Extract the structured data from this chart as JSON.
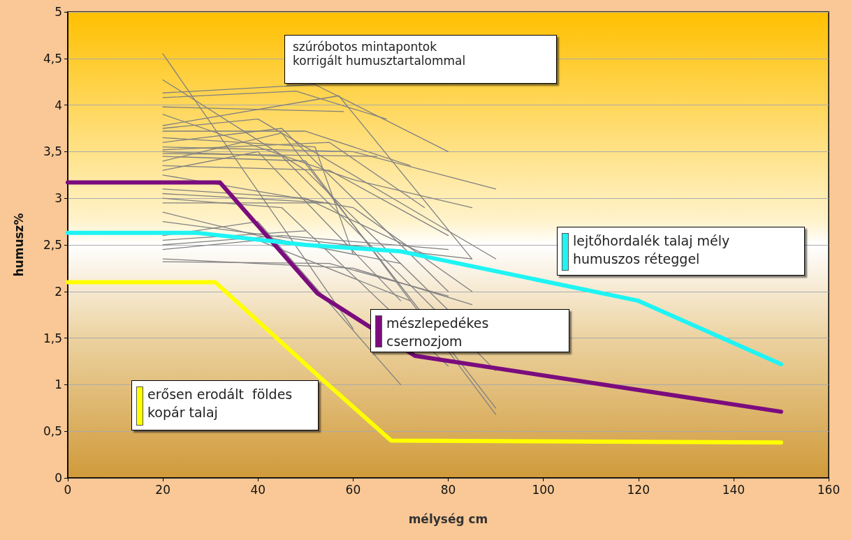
{
  "chart_data": {
    "type": "line",
    "xlabel": "mélység cm",
    "ylabel": "humusz%",
    "annotations": [
      "szúróbotos mintapontok\nkorrigált humusztartalommal"
    ],
    "xlim": [
      0,
      160
    ],
    "xticks": [
      0,
      20,
      40,
      60,
      80,
      100,
      120,
      140,
      160
    ],
    "ylim": [
      0,
      5
    ],
    "yticks": [
      0,
      {
        "value": 0.5,
        "label": "0,5"
      },
      1,
      {
        "value": 1.5,
        "label": "1,5"
      },
      2,
      {
        "value": 2.5,
        "label": "2,5"
      },
      3,
      {
        "value": 3.5,
        "label": "3,5"
      },
      4,
      {
        "value": 4.5,
        "label": "4,5"
      },
      5
    ],
    "grid": "y",
    "legend": false,
    "marker": "none",
    "line_style": "solid",
    "series": [
      {
        "color": "#808080",
        "x": [
          20,
          60
        ],
        "values": [
          4.55,
          1.6
        ]
      },
      {
        "color": "#808080",
        "x": [
          20,
          50,
          80
        ],
        "values": [
          4.27,
          3.3,
          1.8
        ]
      },
      {
        "color": "#808080",
        "x": [
          20,
          52,
          80
        ],
        "values": [
          4.13,
          4.22,
          3.5
        ]
      },
      {
        "color": "#808080",
        "x": [
          20,
          48,
          67
        ],
        "values": [
          4.08,
          4.15,
          3.85
        ]
      },
      {
        "color": "#808080",
        "x": [
          20,
          58
        ],
        "values": [
          3.98,
          3.93
        ]
      },
      {
        "color": "#808080",
        "x": [
          20,
          57,
          85
        ],
        "values": [
          3.78,
          4.1,
          2.35
        ]
      },
      {
        "color": "#808080",
        "x": [
          20,
          40,
          90
        ],
        "values": [
          3.75,
          3.85,
          2.35
        ]
      },
      {
        "color": "#808080",
        "x": [
          20,
          50,
          72
        ],
        "values": [
          3.72,
          3.72,
          3.35
        ]
      },
      {
        "color": "#808080",
        "x": [
          20,
          45,
          80
        ],
        "values": [
          3.6,
          3.75,
          2.0
        ]
      },
      {
        "color": "#808080",
        "x": [
          20,
          60,
          90
        ],
        "values": [
          3.55,
          3.5,
          3.1
        ]
      },
      {
        "color": "#808080",
        "x": [
          20,
          55,
          75
        ],
        "values": [
          3.52,
          3.6,
          2.9
        ]
      },
      {
        "color": "#808080",
        "x": [
          20,
          45,
          90
        ],
        "values": [
          3.5,
          3.45,
          1.15
        ]
      },
      {
        "color": "#808080",
        "x": [
          20,
          65
        ],
        "values": [
          3.48,
          3.45
        ]
      },
      {
        "color": "#808080",
        "x": [
          20,
          50,
          90
        ],
        "values": [
          3.45,
          3.4,
          0.68
        ]
      },
      {
        "color": "#808080",
        "x": [
          20,
          45,
          90
        ],
        "values": [
          3.4,
          3.7,
          0.75
        ]
      },
      {
        "color": "#808080",
        "x": [
          20,
          55,
          80
        ],
        "values": [
          3.35,
          3.3,
          2.6
        ]
      },
      {
        "color": "#808080",
        "x": [
          20,
          40,
          70
        ],
        "values": [
          3.3,
          3.5,
          1.9
        ]
      },
      {
        "color": "#808080",
        "x": [
          20,
          60,
          85
        ],
        "values": [
          3.25,
          2.9,
          2.0
        ]
      },
      {
        "color": "#808080",
        "x": [
          20,
          50,
          75
        ],
        "values": [
          3.1,
          3.0,
          2.4
        ]
      },
      {
        "color": "#808080",
        "x": [
          20,
          55
        ],
        "values": [
          3.05,
          2.95
        ]
      },
      {
        "color": "#808080",
        "x": [
          20,
          45,
          80
        ],
        "values": [
          3.0,
          2.9,
          1.2
        ]
      },
      {
        "color": "#808080",
        "x": [
          20,
          55
        ],
        "values": [
          2.95,
          2.95
        ]
      },
      {
        "color": "#808080",
        "x": [
          20,
          40,
          70
        ],
        "values": [
          2.85,
          2.6,
          2.3
        ]
      },
      {
        "color": "#808080",
        "x": [
          20,
          50,
          85
        ],
        "values": [
          2.75,
          2.55,
          2.35
        ]
      },
      {
        "color": "#808080",
        "x": [
          20,
          40,
          70
        ],
        "values": [
          2.6,
          2.75,
          1.0
        ]
      },
      {
        "color": "#808080",
        "x": [
          20,
          50
        ],
        "values": [
          2.55,
          2.65
        ]
      },
      {
        "color": "#808080",
        "x": [
          20,
          45,
          80
        ],
        "values": [
          2.5,
          2.6,
          2.45
        ]
      },
      {
        "color": "#808080",
        "x": [
          20,
          40,
          72
        ],
        "values": [
          2.45,
          2.55,
          1.9
        ]
      },
      {
        "color": "#808080",
        "x": [
          20,
          60,
          85
        ],
        "values": [
          2.35,
          2.25,
          1.86
        ]
      },
      {
        "color": "#808080",
        "x": [
          20,
          55,
          80
        ],
        "values": [
          2.32,
          2.3,
          1.95
        ]
      },
      {
        "color": "#808080",
        "x": [
          20,
          60,
          85
        ],
        "values": [
          3.9,
          3.2,
          2.9
        ]
      },
      {
        "color": "#808080",
        "x": [
          20,
          52,
          60
        ],
        "values": [
          3.65,
          3.55,
          2.4
        ]
      },
      {
        "name": "mészlepedékes\ncsernozjom",
        "color": "#7b0c7e",
        "x": [
          0,
          32,
          52.5,
          73,
          150
        ],
        "values": [
          3.17,
          3.17,
          1.98,
          1.31,
          0.71
        ]
      },
      {
        "name": "lejtőhordalék talaj mély\nhumuszos réteggel",
        "color": "#1ff4f4",
        "x": [
          0,
          27,
          50,
          70,
          120,
          150
        ],
        "values": [
          2.63,
          2.63,
          2.5,
          2.43,
          1.9,
          1.22
        ]
      },
      {
        "name": "erősen erodált  földes\nkopár talaj",
        "color": "#ffff00",
        "x": [
          0,
          31,
          53,
          68,
          150
        ],
        "values": [
          2.1,
          2.1,
          1.08,
          0.4,
          0.38
        ]
      }
    ]
  }
}
